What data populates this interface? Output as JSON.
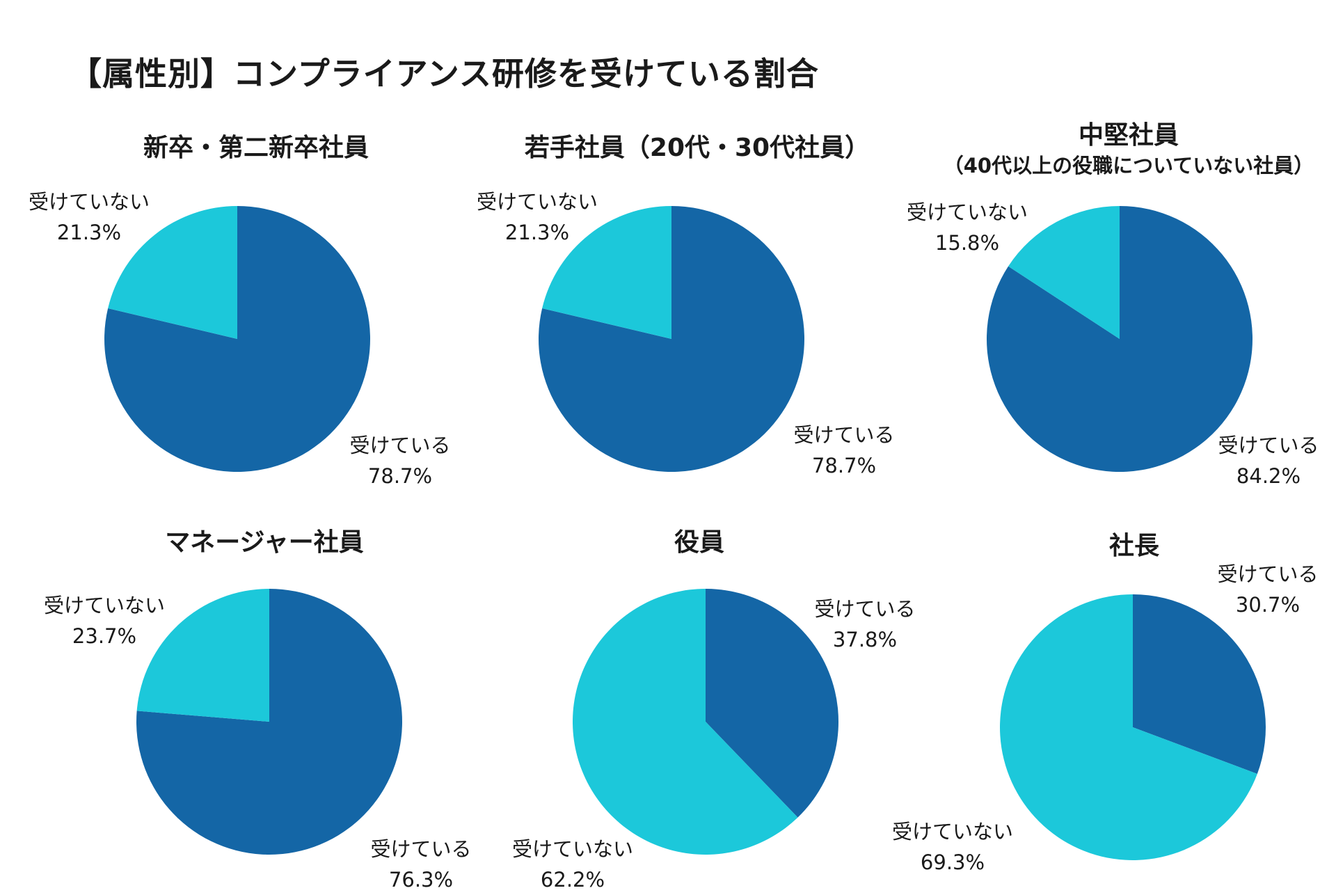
{
  "page": {
    "title": "【属性別】コンプライアンス研修を受けている割合"
  },
  "colors": {
    "received": "#1466a6",
    "not_received": "#1cc8da"
  },
  "chart_data": [
    {
      "type": "pie",
      "title": "新卒・第二新卒社員",
      "subtitle": "",
      "slices": [
        {
          "label": "受けている",
          "value": 78.7,
          "value_text": "78.7%",
          "color": "#1466a6"
        },
        {
          "label": "受けていない",
          "value": 21.3,
          "value_text": "21.3%",
          "color": "#1cc8da"
        }
      ]
    },
    {
      "type": "pie",
      "title": "若手社員（20代・30代社員）",
      "subtitle": "",
      "slices": [
        {
          "label": "受けている",
          "value": 78.7,
          "value_text": "78.7%",
          "color": "#1466a6"
        },
        {
          "label": "受けていない",
          "value": 21.3,
          "value_text": "21.3%",
          "color": "#1cc8da"
        }
      ]
    },
    {
      "type": "pie",
      "title": "中堅社員",
      "subtitle": "（40代以上の役職についていない社員）",
      "slices": [
        {
          "label": "受けている",
          "value": 84.2,
          "value_text": "84.2%",
          "color": "#1466a6"
        },
        {
          "label": "受けていない",
          "value": 15.8,
          "value_text": "15.8%",
          "color": "#1cc8da"
        }
      ]
    },
    {
      "type": "pie",
      "title": "マネージャー社員",
      "subtitle": "",
      "slices": [
        {
          "label": "受けている",
          "value": 76.3,
          "value_text": "76.3%",
          "color": "#1466a6"
        },
        {
          "label": "受けていない",
          "value": 23.7,
          "value_text": "23.7%",
          "color": "#1cc8da"
        }
      ]
    },
    {
      "type": "pie",
      "title": "役員",
      "subtitle": "",
      "slices": [
        {
          "label": "受けている",
          "value": 37.8,
          "value_text": "37.8%",
          "color": "#1466a6"
        },
        {
          "label": "受けていない",
          "value": 62.2,
          "value_text": "62.2%",
          "color": "#1cc8da"
        }
      ]
    },
    {
      "type": "pie",
      "title": "社長",
      "subtitle": "",
      "slices": [
        {
          "label": "受けている",
          "value": 30.7,
          "value_text": "30.7%",
          "color": "#1466a6"
        },
        {
          "label": "受けていない",
          "value": 69.3,
          "value_text": "69.3%",
          "color": "#1cc8da"
        }
      ]
    }
  ]
}
